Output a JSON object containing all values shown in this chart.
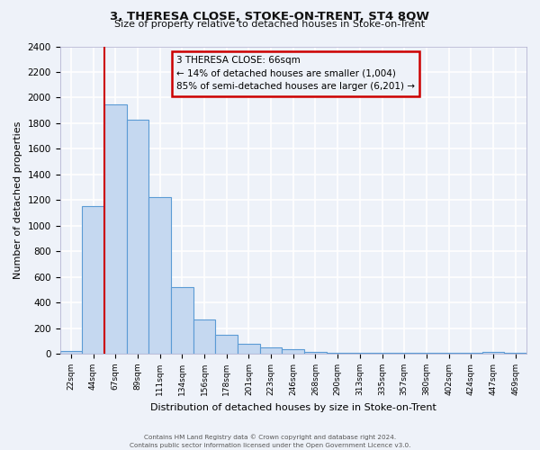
{
  "title": "3, THERESA CLOSE, STOKE-ON-TRENT, ST4 8QW",
  "subtitle": "Size of property relative to detached houses in Stoke-on-Trent",
  "xlabel": "Distribution of detached houses by size in Stoke-on-Trent",
  "ylabel": "Number of detached properties",
  "bin_labels": [
    "22sqm",
    "44sqm",
    "67sqm",
    "89sqm",
    "111sqm",
    "134sqm",
    "156sqm",
    "178sqm",
    "201sqm",
    "223sqm",
    "246sqm",
    "268sqm",
    "290sqm",
    "313sqm",
    "335sqm",
    "357sqm",
    "380sqm",
    "402sqm",
    "424sqm",
    "447sqm",
    "469sqm"
  ],
  "bar_values": [
    25,
    1150,
    1950,
    1830,
    1220,
    520,
    265,
    145,
    75,
    50,
    35,
    15,
    10,
    10,
    5,
    5,
    5,
    5,
    5,
    15,
    5
  ],
  "bar_color": "#c5d8f0",
  "bar_edge_color": "#5b9bd5",
  "vline_x_index": 2,
  "vline_color": "#cc0000",
  "ylim": [
    0,
    2400
  ],
  "yticks": [
    0,
    200,
    400,
    600,
    800,
    1000,
    1200,
    1400,
    1600,
    1800,
    2000,
    2200,
    2400
  ],
  "annotation_title": "3 THERESA CLOSE: 66sqm",
  "annotation_line1": "← 14% of detached houses are smaller (1,004)",
  "annotation_line2": "85% of semi-detached houses are larger (6,201) →",
  "annotation_box_color": "#cc0000",
  "footer1": "Contains HM Land Registry data © Crown copyright and database right 2024.",
  "footer2": "Contains public sector information licensed under the Open Government Licence v3.0.",
  "background_color": "#eef2f9",
  "grid_color": "#ffffff"
}
